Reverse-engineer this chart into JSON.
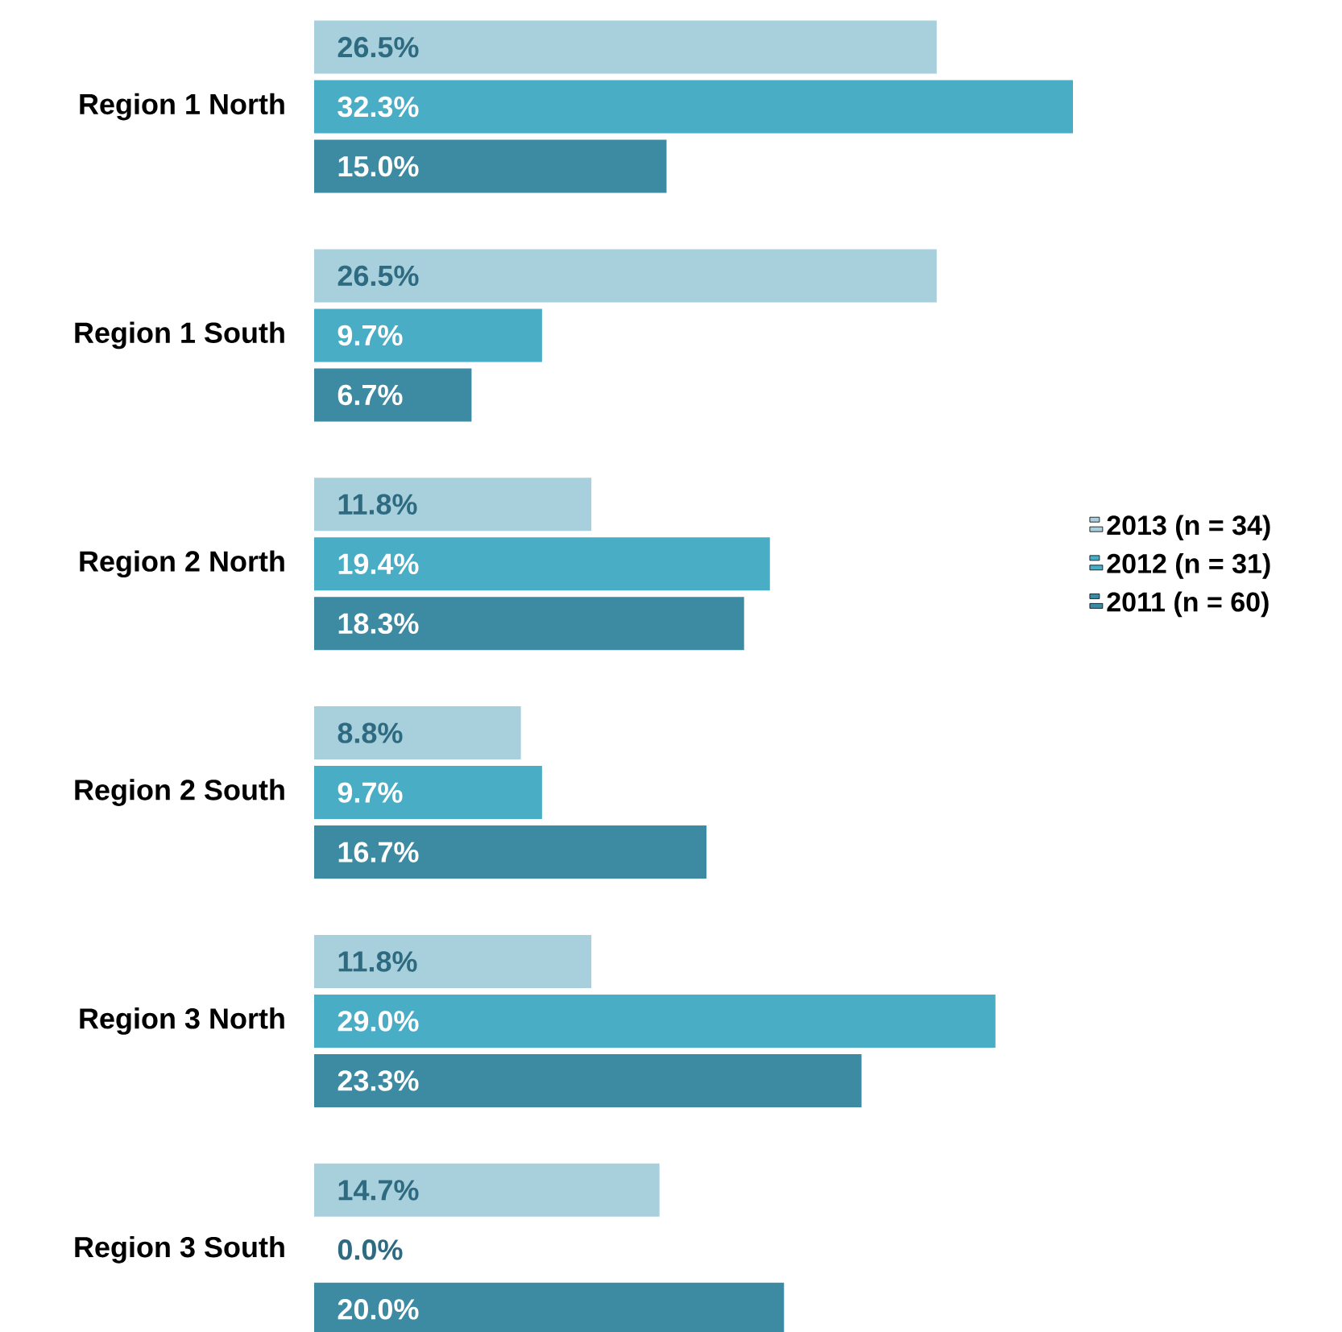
{
  "chart_data": {
    "type": "bar",
    "orientation": "horizontal",
    "legend": "right",
    "categories": [
      "Region 1 North",
      "Region 1 South",
      "Region 2 North",
      "Region 2 South",
      "Region 3 North",
      "Region 3 South"
    ],
    "series": [
      {
        "name": "2013 (n = 34)",
        "color": "#a8cfdc",
        "values": [
          26.5,
          26.5,
          11.8,
          8.8,
          11.8,
          14.7
        ],
        "value_labels": [
          "26.5%",
          "26.5%",
          "11.8%",
          "8.8%",
          "11.8%",
          "14.7%"
        ]
      },
      {
        "name": "2012 (n = 31)",
        "color": "#4aadc6",
        "values": [
          32.3,
          9.7,
          19.4,
          9.7,
          29.0,
          0.0
        ],
        "value_labels": [
          "32.3%",
          "9.7%",
          "19.4%",
          "9.7%",
          "29.0%",
          "0.0%"
        ]
      },
      {
        "name": "2011 (n = 60)",
        "color": "#3d8ba3",
        "values": [
          15.0,
          6.7,
          18.3,
          16.7,
          23.3,
          20.0
        ],
        "value_labels": [
          "15.0%",
          "6.7%",
          "18.3%",
          "16.7%",
          "23.3%",
          "20.0%"
        ]
      }
    ]
  }
}
